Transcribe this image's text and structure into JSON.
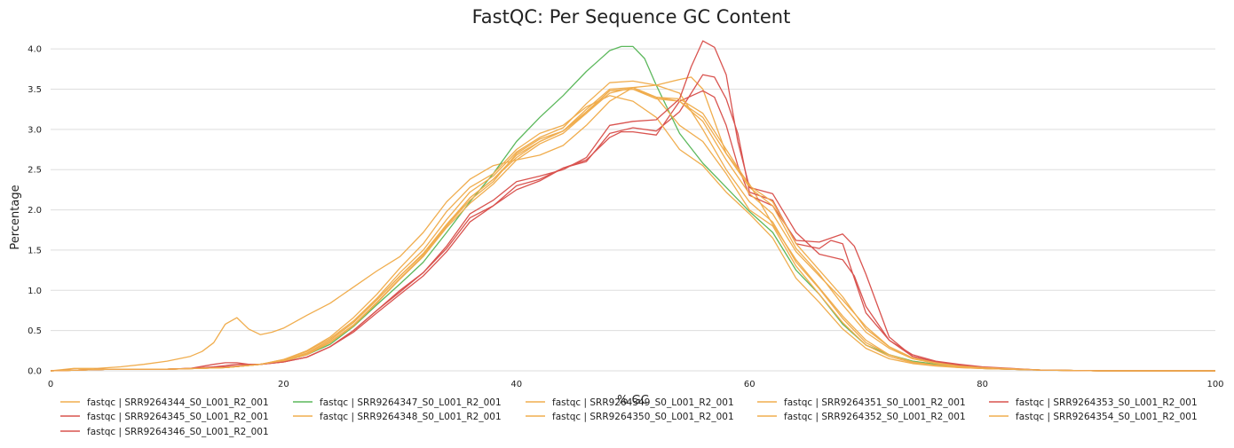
{
  "chart_data": {
    "type": "line",
    "title": "FastQC: Per Sequence GC Content",
    "xlabel": "% GC",
    "ylabel": "Percentage",
    "xlim": [
      0,
      100
    ],
    "ylim": [
      0,
      4.2
    ],
    "xticks": [
      0,
      20,
      40,
      60,
      80,
      100
    ],
    "yticks": [
      0.0,
      0.5,
      1.0,
      1.5,
      2.0,
      2.5,
      3.0,
      3.5,
      4.0
    ],
    "grid": "horizontal",
    "legend_position": "bottom",
    "series": [
      {
        "name": "fastqc | SRR9264344_S0_L001_R2_001",
        "color": "#f0ad4e",
        "x": [
          0,
          2,
          4,
          6,
          8,
          10,
          12,
          13,
          14,
          15,
          16,
          17,
          18,
          19,
          20,
          22,
          24,
          26,
          28,
          30,
          32,
          34,
          36,
          38,
          40,
          42,
          44,
          46,
          48,
          50,
          52,
          54,
          55,
          56,
          58,
          60,
          62,
          64,
          66,
          68,
          70,
          72,
          74,
          76,
          78,
          80,
          85,
          90,
          95,
          100
        ],
        "y": [
          0,
          0.03,
          0.03,
          0.05,
          0.08,
          0.12,
          0.18,
          0.24,
          0.35,
          0.58,
          0.66,
          0.52,
          0.45,
          0.48,
          0.53,
          0.69,
          0.84,
          1.04,
          1.24,
          1.42,
          1.72,
          2.1,
          2.38,
          2.55,
          2.62,
          2.68,
          2.8,
          3.05,
          3.35,
          3.52,
          3.55,
          3.62,
          3.65,
          3.5,
          2.7,
          2.32,
          1.82,
          1.38,
          1.03,
          0.68,
          0.38,
          0.2,
          0.12,
          0.08,
          0.05,
          0.03,
          0.01,
          0,
          0,
          0
        ]
      },
      {
        "name": "fastqc | SRR9264345_S0_L001_R2_001",
        "color": "#d9534f",
        "x": [
          0,
          5,
          10,
          12,
          14,
          16,
          18,
          20,
          22,
          24,
          26,
          28,
          30,
          32,
          34,
          36,
          38,
          40,
          42,
          44,
          46,
          48,
          49,
          50,
          52,
          54,
          56,
          57,
          58,
          59,
          60,
          62,
          64,
          66,
          68,
          69,
          70,
          72,
          74,
          76,
          78,
          80,
          85,
          90,
          100
        ],
        "y": [
          0,
          0.02,
          0.02,
          0.03,
          0.05,
          0.08,
          0.08,
          0.11,
          0.17,
          0.3,
          0.48,
          0.72,
          0.95,
          1.18,
          1.48,
          1.85,
          2.05,
          2.25,
          2.36,
          2.52,
          2.62,
          2.9,
          2.97,
          2.97,
          2.93,
          3.35,
          3.48,
          3.4,
          3.05,
          2.55,
          2.18,
          2.05,
          1.62,
          1.6,
          1.7,
          1.55,
          1.2,
          0.42,
          0.18,
          0.11,
          0.07,
          0.04,
          0.01,
          0,
          0
        ]
      },
      {
        "name": "fastqc | SRR9264346_S0_L001_R2_001",
        "color": "#d9534f",
        "x": [
          0,
          5,
          10,
          12,
          14,
          15,
          16,
          17,
          18,
          20,
          22,
          24,
          26,
          28,
          30,
          32,
          34,
          36,
          38,
          40,
          42,
          44,
          46,
          48,
          50,
          52,
          54,
          55,
          56,
          57,
          58,
          59,
          60,
          62,
          64,
          66,
          67,
          68,
          70,
          72,
          74,
          76,
          78,
          80,
          85,
          90,
          100
        ],
        "y": [
          0,
          0.02,
          0.02,
          0.03,
          0.08,
          0.1,
          0.1,
          0.08,
          0.08,
          0.11,
          0.17,
          0.3,
          0.5,
          0.75,
          0.98,
          1.22,
          1.52,
          1.9,
          2.05,
          2.3,
          2.38,
          2.52,
          2.6,
          2.95,
          3.02,
          2.98,
          3.22,
          3.45,
          3.68,
          3.65,
          3.38,
          2.95,
          2.22,
          2.12,
          1.58,
          1.52,
          1.62,
          1.58,
          0.72,
          0.38,
          0.2,
          0.12,
          0.08,
          0.05,
          0.01,
          0,
          0
        ]
      },
      {
        "name": "fastqc | SRR9264347_S0_L001_R2_001",
        "color": "#5cb85c",
        "x": [
          0,
          5,
          10,
          15,
          18,
          20,
          22,
          24,
          26,
          28,
          30,
          32,
          34,
          36,
          38,
          40,
          42,
          44,
          46,
          47,
          48,
          49,
          50,
          51,
          52,
          54,
          56,
          58,
          60,
          62,
          64,
          66,
          68,
          70,
          72,
          74,
          76,
          78,
          80,
          85,
          90,
          100
        ],
        "y": [
          0,
          0.02,
          0.02,
          0.04,
          0.08,
          0.12,
          0.2,
          0.33,
          0.55,
          0.82,
          1.08,
          1.35,
          1.72,
          2.1,
          2.45,
          2.85,
          3.15,
          3.42,
          3.72,
          3.85,
          3.98,
          4.03,
          4.03,
          3.88,
          3.55,
          2.95,
          2.58,
          2.28,
          1.98,
          1.72,
          1.25,
          0.95,
          0.58,
          0.32,
          0.2,
          0.12,
          0.08,
          0.05,
          0.03,
          0.01,
          0,
          0
        ]
      },
      {
        "name": "fastqc | SRR9264348_S0_L001_R2_001",
        "color": "#f0ad4e",
        "x": [
          0,
          5,
          10,
          15,
          18,
          20,
          22,
          24,
          26,
          28,
          30,
          32,
          34,
          36,
          38,
          40,
          42,
          44,
          46,
          48,
          50,
          52,
          54,
          56,
          58,
          60,
          62,
          64,
          66,
          68,
          70,
          72,
          74,
          76,
          78,
          80,
          85,
          90,
          100
        ],
        "y": [
          0,
          0.02,
          0.02,
          0.04,
          0.08,
          0.13,
          0.22,
          0.38,
          0.6,
          0.88,
          1.18,
          1.45,
          1.8,
          2.15,
          2.38,
          2.65,
          2.85,
          2.98,
          3.2,
          3.45,
          3.52,
          3.4,
          3.35,
          3.1,
          2.62,
          2.2,
          1.95,
          1.48,
          1.18,
          0.88,
          0.55,
          0.3,
          0.16,
          0.1,
          0.06,
          0.04,
          0.01,
          0,
          0
        ]
      },
      {
        "name": "fastqc | SRR9264349_S0_L001_R2_001",
        "color": "#f0ad4e",
        "x": [
          0,
          5,
          10,
          15,
          18,
          20,
          22,
          24,
          26,
          28,
          30,
          32,
          34,
          36,
          38,
          40,
          42,
          44,
          46,
          48,
          50,
          52,
          54,
          56,
          58,
          60,
          62,
          64,
          66,
          68,
          70,
          72,
          74,
          76,
          78,
          80,
          85,
          90,
          100
        ],
        "y": [
          0,
          0.02,
          0.02,
          0.04,
          0.08,
          0.12,
          0.2,
          0.35,
          0.56,
          0.84,
          1.14,
          1.42,
          1.78,
          2.08,
          2.32,
          2.62,
          2.82,
          2.95,
          3.2,
          3.48,
          3.5,
          3.38,
          3.35,
          3.15,
          2.7,
          2.28,
          2.05,
          1.52,
          1.2,
          0.82,
          0.48,
          0.28,
          0.15,
          0.09,
          0.06,
          0.03,
          0.01,
          0,
          0
        ]
      },
      {
        "name": "fastqc | SRR9264350_S0_L001_R2_001",
        "color": "#f0ad4e",
        "x": [
          0,
          5,
          10,
          15,
          18,
          20,
          22,
          24,
          26,
          28,
          30,
          32,
          34,
          36,
          38,
          40,
          42,
          44,
          46,
          48,
          50,
          52,
          54,
          56,
          58,
          60,
          62,
          64,
          66,
          68,
          70,
          72,
          74,
          76,
          78,
          80,
          85,
          90,
          100
        ],
        "y": [
          0,
          0.02,
          0.02,
          0.04,
          0.08,
          0.14,
          0.24,
          0.4,
          0.62,
          0.9,
          1.22,
          1.5,
          1.88,
          2.22,
          2.42,
          2.72,
          2.9,
          3.02,
          3.32,
          3.58,
          3.6,
          3.55,
          3.45,
          3.0,
          2.5,
          2.1,
          1.85,
          1.35,
          1.02,
          0.65,
          0.35,
          0.2,
          0.11,
          0.07,
          0.05,
          0.03,
          0.01,
          0,
          0
        ]
      },
      {
        "name": "fastqc | SRR9264351_S0_L001_R2_001",
        "color": "#f0ad4e",
        "x": [
          0,
          5,
          10,
          15,
          18,
          20,
          22,
          24,
          26,
          28,
          30,
          32,
          34,
          36,
          38,
          40,
          42,
          44,
          46,
          48,
          50,
          52,
          54,
          56,
          58,
          60,
          62,
          64,
          66,
          68,
          70,
          72,
          74,
          76,
          78,
          80,
          85,
          90,
          100
        ],
        "y": [
          0,
          0.02,
          0.02,
          0.04,
          0.08,
          0.12,
          0.21,
          0.36,
          0.57,
          0.85,
          1.15,
          1.43,
          1.8,
          2.12,
          2.35,
          2.7,
          2.88,
          2.98,
          3.25,
          3.5,
          3.52,
          3.4,
          3.05,
          2.85,
          2.45,
          2.0,
          1.8,
          1.3,
          0.95,
          0.6,
          0.32,
          0.18,
          0.1,
          0.07,
          0.04,
          0.03,
          0.01,
          0,
          0
        ]
      },
      {
        "name": "fastqc | SRR9264352_S0_L001_R2_001",
        "color": "#f0ad4e",
        "x": [
          0,
          5,
          10,
          15,
          18,
          20,
          22,
          24,
          26,
          28,
          30,
          32,
          34,
          36,
          38,
          40,
          42,
          44,
          46,
          48,
          50,
          52,
          54,
          56,
          58,
          60,
          62,
          64,
          66,
          68,
          70,
          72,
          74,
          76,
          78,
          80,
          85,
          90,
          100
        ],
        "y": [
          0,
          0.02,
          0.02,
          0.04,
          0.08,
          0.14,
          0.25,
          0.42,
          0.66,
          0.95,
          1.28,
          1.58,
          1.98,
          2.28,
          2.45,
          2.75,
          2.95,
          3.05,
          3.28,
          3.42,
          3.35,
          3.15,
          2.75,
          2.55,
          2.22,
          1.95,
          1.65,
          1.15,
          0.85,
          0.52,
          0.28,
          0.15,
          0.09,
          0.06,
          0.04,
          0.03,
          0.01,
          0,
          0
        ]
      },
      {
        "name": "fastqc | SRR9264353_S0_L001_R2_001",
        "color": "#d9534f",
        "x": [
          0,
          5,
          10,
          12,
          14,
          16,
          18,
          20,
          22,
          24,
          26,
          28,
          30,
          32,
          34,
          36,
          38,
          40,
          42,
          44,
          46,
          48,
          50,
          52,
          54,
          55,
          56,
          57,
          58,
          59,
          60,
          62,
          64,
          66,
          68,
          69,
          70,
          72,
          74,
          76,
          78,
          80,
          85,
          90,
          100
        ],
        "y": [
          0,
          0.02,
          0.02,
          0.03,
          0.04,
          0.06,
          0.08,
          0.11,
          0.17,
          0.3,
          0.5,
          0.75,
          1.0,
          1.22,
          1.55,
          1.95,
          2.12,
          2.35,
          2.42,
          2.5,
          2.65,
          3.05,
          3.1,
          3.12,
          3.38,
          3.78,
          4.1,
          4.02,
          3.68,
          2.85,
          2.28,
          2.2,
          1.72,
          1.45,
          1.38,
          1.18,
          0.8,
          0.38,
          0.18,
          0.11,
          0.07,
          0.04,
          0.01,
          0,
          0
        ]
      },
      {
        "name": "fastqc | SRR9264354_S0_L001_R2_001",
        "color": "#f0ad4e",
        "x": [
          0,
          5,
          10,
          15,
          18,
          20,
          22,
          24,
          26,
          28,
          30,
          32,
          34,
          36,
          38,
          40,
          42,
          44,
          46,
          48,
          50,
          52,
          54,
          56,
          58,
          60,
          62,
          64,
          66,
          68,
          70,
          72,
          74,
          76,
          78,
          80,
          85,
          90,
          100
        ],
        "y": [
          0,
          0.02,
          0.02,
          0.04,
          0.08,
          0.13,
          0.22,
          0.38,
          0.6,
          0.88,
          1.18,
          1.46,
          1.82,
          2.15,
          2.38,
          2.68,
          2.85,
          2.98,
          3.22,
          3.48,
          3.5,
          3.4,
          3.38,
          3.2,
          2.75,
          2.3,
          2.1,
          1.58,
          1.25,
          0.92,
          0.52,
          0.3,
          0.16,
          0.1,
          0.06,
          0.04,
          0.01,
          0,
          0
        ]
      }
    ]
  }
}
